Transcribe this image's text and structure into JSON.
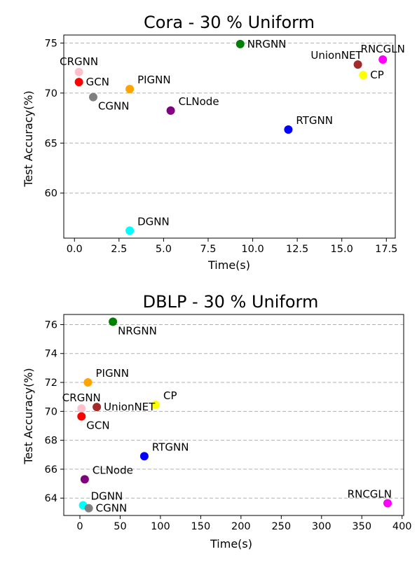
{
  "chart_data": [
    {
      "type": "scatter",
      "title": "Cora - 30 % Uniform",
      "xlabel": "Time(s)",
      "ylabel": "Test Accuracy(%)",
      "xlim": [
        -0.6,
        18.0
      ],
      "ylim": [
        55.5,
        75.8
      ],
      "xticks": [
        0.0,
        2.5,
        5.0,
        7.5,
        10.0,
        12.5,
        15.0,
        17.5
      ],
      "xtick_labels": [
        "0.0",
        "2.5",
        "5.0",
        "7.5",
        "10.0",
        "12.5",
        "15.0",
        "17.5"
      ],
      "yticks": [
        60,
        65,
        70,
        75
      ],
      "ytick_labels": [
        "60",
        "65",
        "70",
        "75"
      ],
      "grid": "horizontal dashed",
      "points": [
        {
          "label": "CRGNN",
          "x": 0.25,
          "y": 72.1,
          "color": "#ffc0cb",
          "label_pos": "top"
        },
        {
          "label": "GCN",
          "x": 0.25,
          "y": 71.1,
          "color": "#ff0000",
          "label_pos": "right"
        },
        {
          "label": "CGNN",
          "x": 1.05,
          "y": 69.6,
          "color": "#808080",
          "label_pos": "bottom-right"
        },
        {
          "label": "PIGNN",
          "x": 3.1,
          "y": 70.4,
          "color": "#ffa500",
          "label_pos": "top-right"
        },
        {
          "label": "CLNode",
          "x": 5.4,
          "y": 68.25,
          "color": "#800080",
          "label_pos": "top-right"
        },
        {
          "label": "NRGNN",
          "x": 9.3,
          "y": 74.9,
          "color": "#008000",
          "label_pos": "right"
        },
        {
          "label": "RTGNN",
          "x": 12.0,
          "y": 66.35,
          "color": "#0000ff",
          "label_pos": "top-right"
        },
        {
          "label": "DGNN",
          "x": 3.1,
          "y": 56.25,
          "color": "#00ffff",
          "label_pos": "top-right"
        },
        {
          "label": "UnionNET",
          "x": 15.9,
          "y": 72.85,
          "color": "#a52a2a",
          "label_pos": "top-left"
        },
        {
          "label": "CP",
          "x": 16.2,
          "y": 71.8,
          "color": "#ffff00",
          "label_pos": "right"
        },
        {
          "label": "RNCGLN",
          "x": 17.3,
          "y": 73.35,
          "color": "#ff00ff",
          "label_pos": "top"
        }
      ]
    },
    {
      "type": "scatter",
      "title": "DBLP - 30 % Uniform",
      "xlabel": "Time(s)",
      "ylabel": "Test Accuracy(%)",
      "xlim": [
        -20,
        402
      ],
      "ylim": [
        62.8,
        76.7
      ],
      "xticks": [
        0,
        50,
        100,
        150,
        200,
        250,
        300,
        350,
        400
      ],
      "xtick_labels": [
        "0",
        "50",
        "100",
        "150",
        "200",
        "250",
        "300",
        "350",
        "400"
      ],
      "yticks": [
        64,
        66,
        68,
        70,
        72,
        74,
        76
      ],
      "ytick_labels": [
        "64",
        "66",
        "68",
        "70",
        "72",
        "74",
        "76"
      ],
      "grid": "horizontal dashed",
      "points": [
        {
          "label": "NRGNN",
          "x": 41,
          "y": 76.2,
          "color": "#008000",
          "label_pos": "bottom-right"
        },
        {
          "label": "PIGNN",
          "x": 10,
          "y": 72.0,
          "color": "#ffa500",
          "label_pos": "top-right"
        },
        {
          "label": "CRGNN",
          "x": 2,
          "y": 70.2,
          "color": "#ffc0cb",
          "label_pos": "top"
        },
        {
          "label": "UnionNET",
          "x": 21,
          "y": 70.3,
          "color": "#a52a2a",
          "label_pos": "right"
        },
        {
          "label": "CP",
          "x": 94,
          "y": 70.45,
          "color": "#ffff00",
          "label_pos": "top-right"
        },
        {
          "label": "GCN",
          "x": 2,
          "y": 69.65,
          "color": "#ff0000",
          "label_pos": "bottom-right"
        },
        {
          "label": "RTGNN",
          "x": 80,
          "y": 66.9,
          "color": "#0000ff",
          "label_pos": "top-right"
        },
        {
          "label": "CLNode",
          "x": 6,
          "y": 65.3,
          "color": "#800080",
          "label_pos": "top-right"
        },
        {
          "label": "DGNN",
          "x": 4,
          "y": 63.5,
          "color": "#00ffff",
          "label_pos": "top-right"
        },
        {
          "label": "CGNN",
          "x": 11,
          "y": 63.3,
          "color": "#808080",
          "label_pos": "right"
        },
        {
          "label": "RNCGLN",
          "x": 382,
          "y": 63.65,
          "color": "#ff00ff",
          "label_pos": "top-left"
        }
      ]
    }
  ]
}
